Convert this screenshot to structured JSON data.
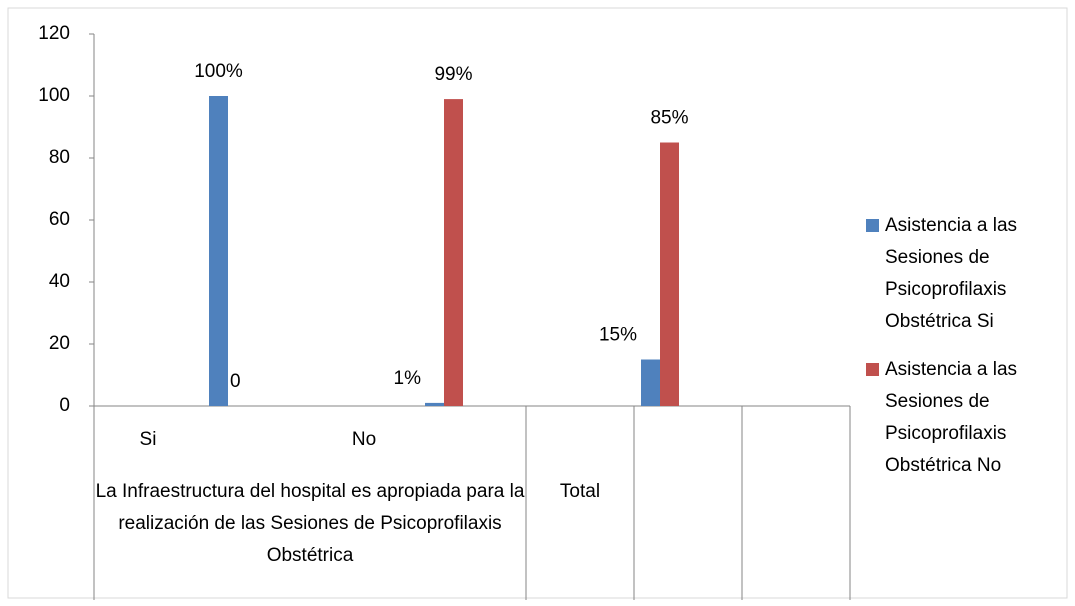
{
  "chart_data": {
    "type": "bar",
    "categories": [
      "Si",
      "No",
      null
    ],
    "groups": [
      {
        "label": "La Infraestructura del hospital es apropiada para la realización de las Sesiones de Psicoprofilaxis Obstétrica",
        "span": 2
      },
      {
        "label": "Total",
        "span": 1
      }
    ],
    "series": [
      {
        "name": "Asistencia a las Sesiones de Psicoprofilaxis Obstétrica Si",
        "color": "#4f81bd",
        "values": [
          100,
          1,
          15
        ],
        "value_labels": [
          "100%",
          "1%",
          "15%"
        ]
      },
      {
        "name": "Asistencia a las Sesiones de Psicoprofilaxis Obstétrica No",
        "color": "#c0504d",
        "values": [
          0,
          99,
          85
        ],
        "value_labels": [
          "0",
          "99%",
          "85%"
        ]
      }
    ],
    "ylim": [
      0,
      120
    ],
    "yticks": [
      0,
      20,
      40,
      60,
      80,
      100,
      120
    ],
    "grid": false,
    "legend": "right"
  }
}
